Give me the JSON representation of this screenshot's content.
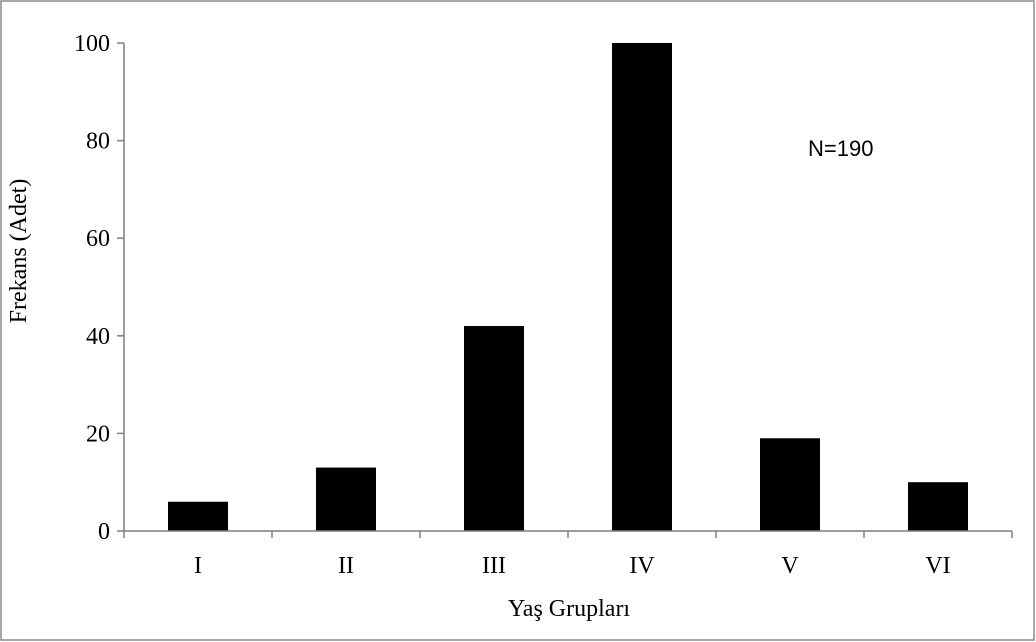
{
  "chart_data": {
    "type": "bar",
    "categories": [
      "I",
      "II",
      "III",
      "IV",
      "V",
      "VI"
    ],
    "values": [
      6,
      13,
      42,
      100,
      19,
      10
    ],
    "xlabel": "Yaş Grupları",
    "ylabel": "Frekans (Adet)",
    "ylim": [
      0,
      100
    ],
    "yticks": [
      0,
      20,
      40,
      60,
      80,
      100
    ],
    "annotation": "N=190",
    "grid": false,
    "bar_color": "#000000",
    "axis_color": "#7f7f7f"
  }
}
